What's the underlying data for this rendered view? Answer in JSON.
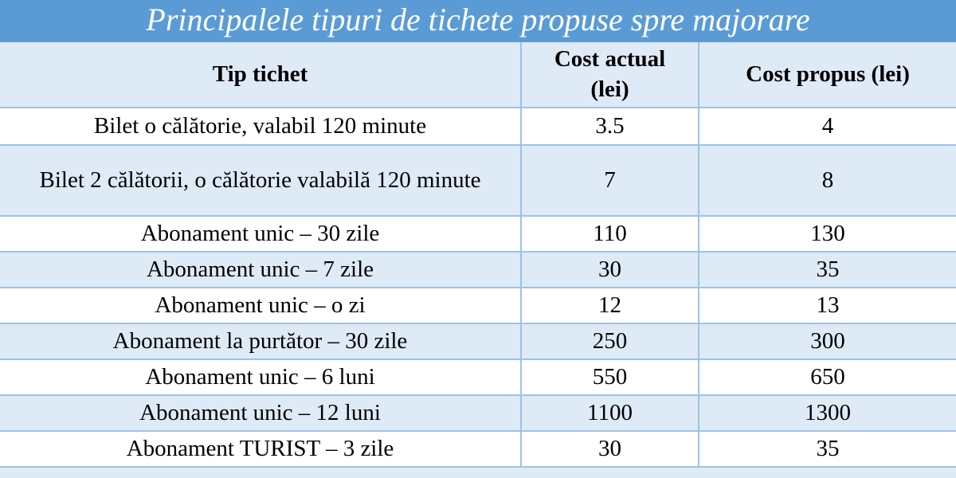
{
  "title": "Principalele tipuri de tichete propuse spre majorare",
  "colors": {
    "title_bg": "#5B9BD5",
    "title_text": "#FFFFFF",
    "band_bg": "#DEEAF6",
    "border": "#9CC3E6",
    "body_text": "#000000"
  },
  "table": {
    "headers": {
      "tip": "Tip tichet",
      "cost_actual": "Cost actual (lei)",
      "cost_propus": "Cost propus (lei)"
    },
    "rows": [
      {
        "tip": "Bilet o călătorie, valabil 120 minute",
        "cost_actual": "3.5",
        "cost_propus": "4"
      },
      {
        "tip": "Bilet 2 călătorii, o călătorie valabilă 120 minute",
        "cost_actual": "7",
        "cost_propus": "8"
      },
      {
        "tip": "Abonament unic – 30 zile",
        "cost_actual": "110",
        "cost_propus": "130"
      },
      {
        "tip": "Abonament unic – 7 zile",
        "cost_actual": "30",
        "cost_propus": "35"
      },
      {
        "tip": "Abonament unic – o zi",
        "cost_actual": "12",
        "cost_propus": "13"
      },
      {
        "tip": "Abonament la purtător – 30 zile",
        "cost_actual": "250",
        "cost_propus": "300"
      },
      {
        "tip": "Abonament unic – 6 luni",
        "cost_actual": "550",
        "cost_propus": "650"
      },
      {
        "tip": "Abonament unic – 12 luni",
        "cost_actual": "1100",
        "cost_propus": "1300"
      },
      {
        "tip": "Abonament TURIST – 3 zile",
        "cost_actual": "30",
        "cost_propus": "35"
      }
    ]
  }
}
